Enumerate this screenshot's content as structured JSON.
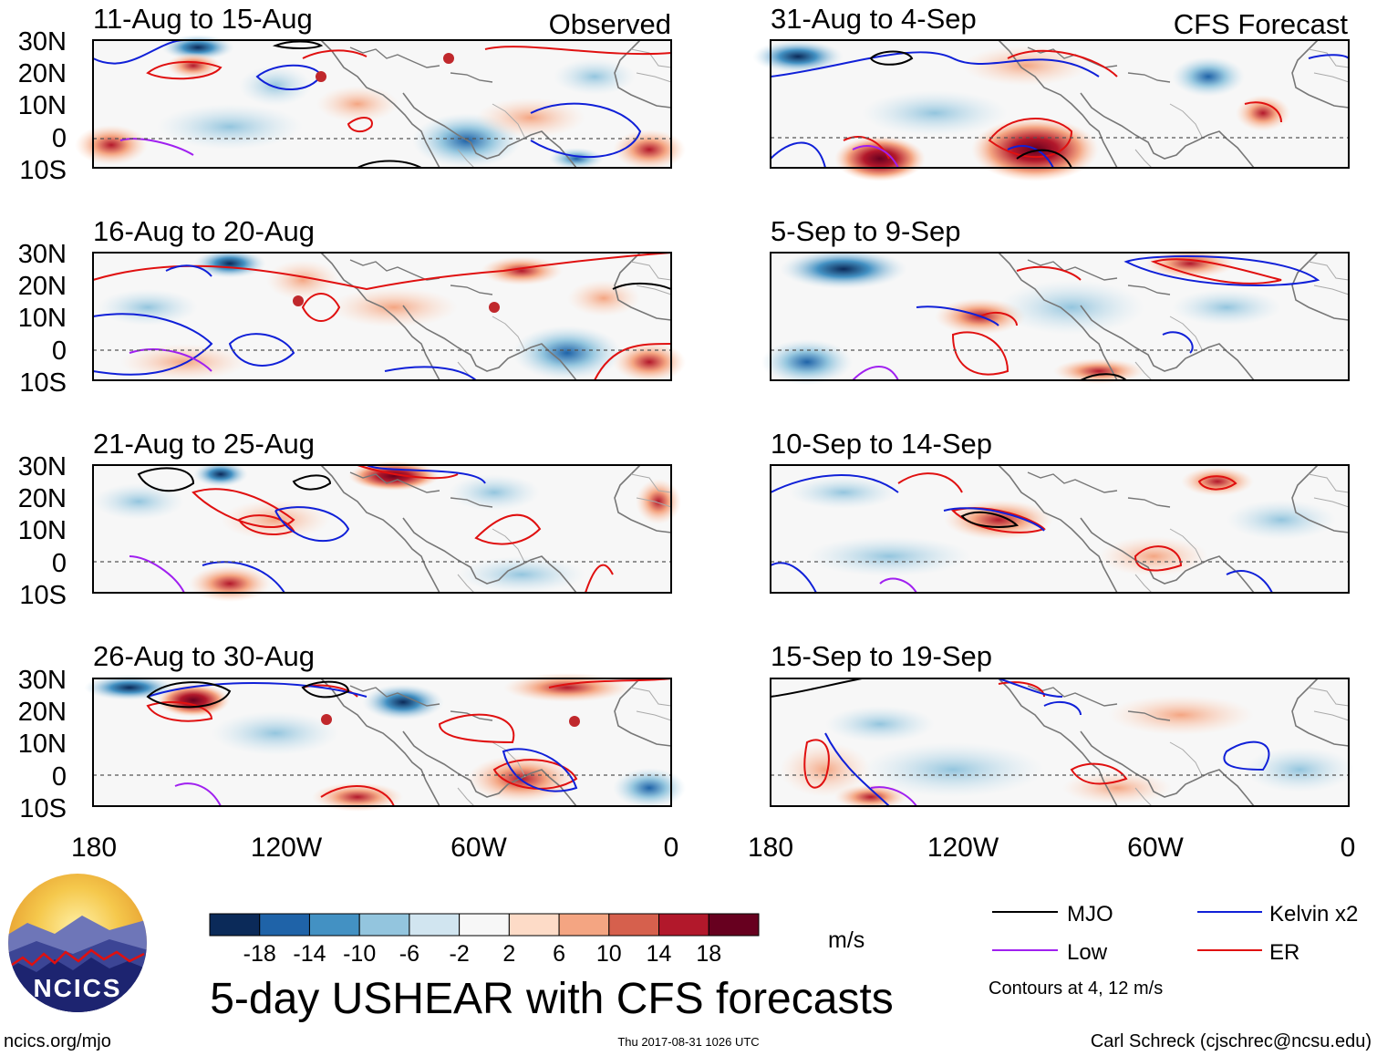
{
  "title": "5-day USHEAR with CFS forecasts",
  "header_labels": {
    "observed": "Observed",
    "forecast": "CFS Forecast"
  },
  "panels_left": [
    {
      "period": "11-Aug to 15-Aug"
    },
    {
      "period": "16-Aug to 20-Aug"
    },
    {
      "period": "21-Aug to 25-Aug"
    },
    {
      "period": "26-Aug to 30-Aug"
    }
  ],
  "panels_right": [
    {
      "period": "31-Aug to 4-Sep"
    },
    {
      "period": "5-Sep to 9-Sep"
    },
    {
      "period": "10-Sep to 14-Sep"
    },
    {
      "period": "15-Sep to 19-Sep"
    }
  ],
  "lat_labels": [
    "30N",
    "20N",
    "10N",
    "0",
    "10S"
  ],
  "lon_labels": [
    "180",
    "120W",
    "60W",
    "0"
  ],
  "colorbar": {
    "ticks": [
      "-18",
      "-14",
      "-10",
      "-6",
      "-2",
      "2",
      "6",
      "10",
      "14",
      "18"
    ],
    "colors": [
      "#0b2a59",
      "#1f63a8",
      "#4391c3",
      "#93c5de",
      "#d1e5f0",
      "#f7f7f7",
      "#fddbc7",
      "#f4a582",
      "#d6604d",
      "#b2182b",
      "#67001f"
    ],
    "unit": "m/s"
  },
  "legend": {
    "items": [
      {
        "label": "MJO",
        "color": "#000000"
      },
      {
        "label": "Kelvin x2",
        "color": "#1020d8"
      },
      {
        "label": "Low",
        "color": "#a020f0"
      },
      {
        "label": "ER",
        "color": "#e01010"
      }
    ],
    "note": "Contours at 4, 12 m/s"
  },
  "logo": {
    "text": "NCICS"
  },
  "footer": {
    "left": "ncics.org/mjo",
    "center": "Thu 2017-08-31 1026 UTC",
    "right": "Carl Schreck (cjschrec@ncsu.edu)"
  }
}
